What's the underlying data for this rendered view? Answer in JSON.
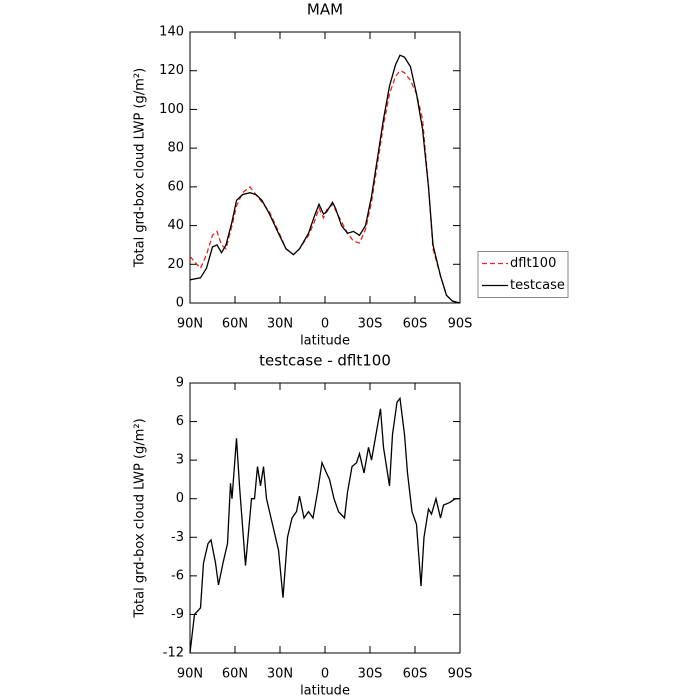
{
  "chart_data": [
    {
      "type": "line",
      "title": "MAM",
      "xlabel": "latitude",
      "ylabel": "Total grd-box cloud LWP (g/m²)",
      "xlim": [
        90,
        -90
      ],
      "xticks": [
        {
          "value": 90,
          "label": "90N"
        },
        {
          "value": 60,
          "label": "60N"
        },
        {
          "value": 30,
          "label": "30N"
        },
        0,
        {
          "value": -30,
          "label": "30S"
        },
        {
          "value": -60,
          "label": "60S"
        },
        {
          "value": -90,
          "label": "90S"
        }
      ],
      "ylim": [
        0,
        140
      ],
      "yticks": [
        0,
        20,
        40,
        60,
        80,
        100,
        120,
        140
      ],
      "legend": "right",
      "x": [
        90,
        83,
        79,
        75,
        72,
        69,
        66,
        62,
        59,
        55,
        50,
        46,
        42,
        37,
        31,
        26,
        21,
        17,
        11,
        7,
        4,
        1,
        -1,
        -5,
        -7,
        -11,
        -15,
        -19,
        -23,
        -27,
        -31,
        -35,
        -39,
        -43,
        -47,
        -50,
        -53,
        -57,
        -61,
        -65,
        -69,
        -72,
        -77,
        -81,
        -85,
        -90
      ],
      "series": [
        {
          "name": "dflt100",
          "color": "#e8221c",
          "linestyle": "dashed",
          "values": [
            24,
            18,
            25,
            35,
            37,
            30,
            28,
            40,
            50,
            57,
            60,
            56,
            52,
            47,
            37,
            28,
            25,
            28,
            35,
            42,
            49,
            44,
            48,
            51,
            48,
            42,
            36,
            32,
            31,
            38,
            52,
            72,
            92,
            108,
            117,
            120,
            119,
            115,
            108,
            95,
            60,
            28,
            14,
            4,
            1,
            0
          ]
        },
        {
          "name": "testcase",
          "color": "#000000",
          "linestyle": "solid",
          "values": [
            12,
            13,
            18,
            29,
            30,
            26,
            30,
            42,
            53,
            56,
            57,
            56,
            53,
            46,
            36,
            28,
            25,
            28,
            36,
            45,
            51,
            46,
            47,
            52,
            49,
            40,
            36,
            37,
            35,
            40,
            55,
            75,
            95,
            112,
            123,
            128,
            127,
            122,
            108,
            90,
            60,
            30,
            14,
            4,
            1,
            0
          ]
        }
      ]
    },
    {
      "type": "line",
      "title": "testcase - dflt100",
      "xlabel": "latitude",
      "ylabel": "Total grd-box cloud LWP (g/m²)",
      "xlim": [
        90,
        -90
      ],
      "xticks": [
        {
          "value": 90,
          "label": "90N"
        },
        {
          "value": 60,
          "label": "60N"
        },
        {
          "value": 30,
          "label": "30N"
        },
        0,
        {
          "value": -30,
          "label": "30S"
        },
        {
          "value": -60,
          "label": "60S"
        },
        {
          "value": -90,
          "label": "90S"
        }
      ],
      "ylim": [
        -12,
        9
      ],
      "yticks": [
        -12,
        -9,
        -6,
        -3,
        0,
        3,
        6,
        9
      ],
      "x": [
        90,
        87,
        83,
        81,
        78,
        76,
        73,
        71,
        68,
        65,
        63,
        62,
        59,
        57,
        53,
        49,
        47,
        45,
        43,
        41,
        39,
        35,
        31,
        28,
        25,
        22,
        19,
        17,
        14,
        11,
        8,
        5,
        2,
        -1,
        -3,
        -6,
        -9,
        -13,
        -15,
        -18,
        -21,
        -23,
        -26,
        -29,
        -31,
        -34,
        -37,
        -39,
        -43,
        -45,
        -48,
        -50,
        -53,
        -55,
        -58,
        -61,
        -64,
        -66,
        -69,
        -71,
        -74,
        -77,
        -79,
        -83,
        -87,
        -90
      ],
      "series": [
        {
          "color": "#000000",
          "linestyle": "solid",
          "values": [
            -12,
            -9,
            -8.5,
            -5,
            -3.5,
            -3.2,
            -5,
            -6.7,
            -5,
            -3.5,
            1.2,
            0,
            4.7,
            1,
            -5.2,
            0,
            0,
            2.5,
            1,
            2.5,
            0,
            -2,
            -4,
            -7.7,
            -3,
            -1.5,
            -1,
            0.2,
            -1.5,
            -1,
            -1.5,
            0.5,
            2.8,
            2,
            1.5,
            0,
            -1,
            -1.5,
            0.5,
            2.5,
            2.8,
            3.5,
            2,
            4,
            3,
            5,
            7,
            4,
            1,
            5,
            7.5,
            7.8,
            5,
            2,
            -1,
            -2,
            -6.8,
            -3,
            -0.8,
            -1.2,
            0,
            -1.5,
            -0.5,
            -0.3,
            0,
            0
          ]
        }
      ]
    }
  ]
}
